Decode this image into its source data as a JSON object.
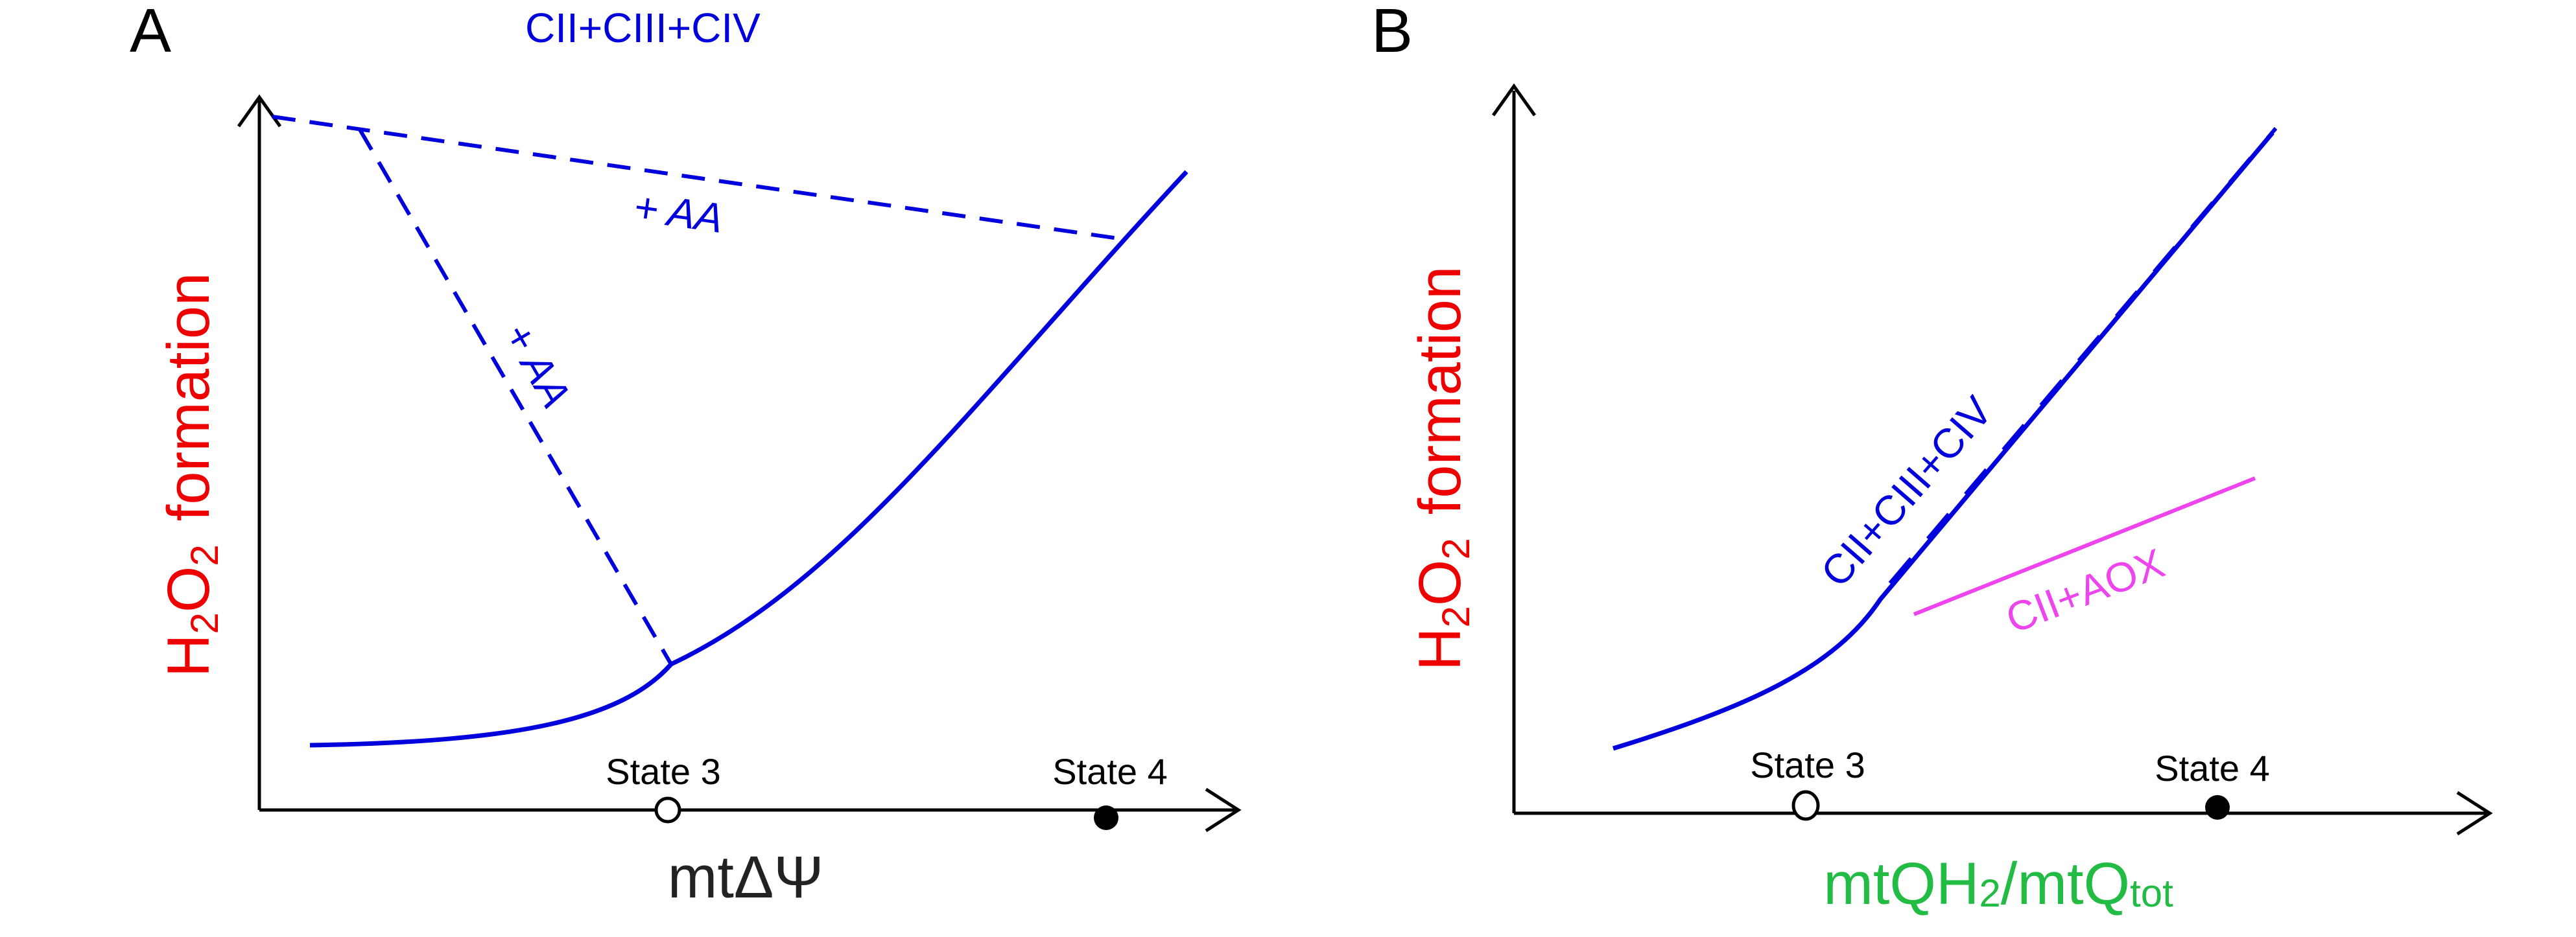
{
  "colors": {
    "blue": "#0000dd",
    "red": "#ee0000",
    "green": "#22bb44",
    "magenta": "#ee44ee",
    "black": "#000000"
  },
  "panel_a": {
    "letter": "A",
    "title": "CII+CIII+CIV",
    "ylabel_main": "H",
    "ylabel_sub1": "2",
    "ylabel_mid": "O",
    "ylabel_sub2": "2",
    "ylabel_tail": "formation",
    "xlabel": "mtΔΨ",
    "aa_label_1": "+ AA",
    "aa_label_2": "+ AA",
    "state3": "State 3",
    "state4": "State 4"
  },
  "panel_b": {
    "letter": "B",
    "ylabel_main": "H",
    "ylabel_sub1": "2",
    "ylabel_mid": "O",
    "ylabel_sub2": "2",
    "ylabel_tail": "formation",
    "xlabel_a": "mtQH",
    "xlabel_a_sub": "2",
    "xlabel_b": "/mtQ",
    "xlabel_b_sub": "tot",
    "curve_label": "CII+CIII+CIV",
    "aox_label": "CII+AOX",
    "state3": "State 3",
    "state4": "State 4"
  }
}
